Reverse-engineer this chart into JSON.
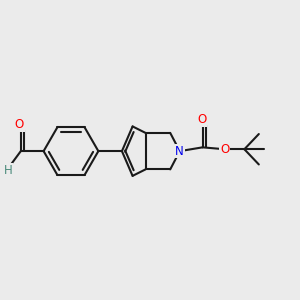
{
  "bg_color": "#ebebeb",
  "bond_color": "#1a1a1a",
  "bond_width": 1.5,
  "figsize": [
    3.0,
    3.0
  ],
  "dpi": 100,
  "atom_colors": {
    "O": "#ff0000",
    "N": "#0000ee",
    "H": "#4a8a7a",
    "C": "#1a1a1a"
  },
  "font_size_atoms": 8.5
}
